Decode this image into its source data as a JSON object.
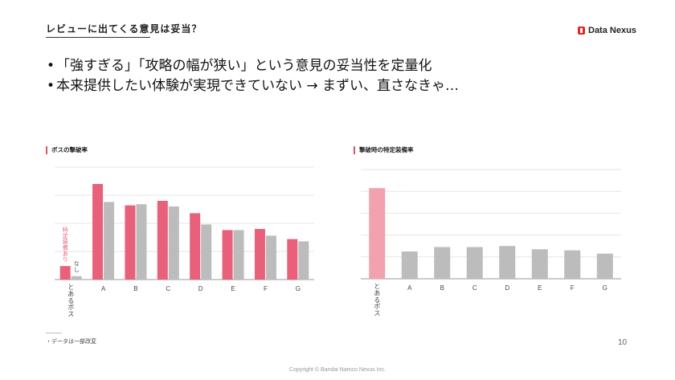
{
  "header": {
    "title": "レビューに出てくる意見は妥当？"
  },
  "logo": {
    "text": "Data Nexus"
  },
  "bullets": [
    "「強すぎる」「攻略の幅が狭い」という意見の妥当性を定量化",
    "本来提供したい体験が実現できていない → まずい、直さなきゃ…"
  ],
  "bullet_marker": "•",
  "chart_data": [
    {
      "type": "bar",
      "title": "ボスの撃破率",
      "categories": [
        "とあるボス",
        "A",
        "B",
        "C",
        "D",
        "E",
        "F",
        "G"
      ],
      "series": [
        {
          "name": "特定装備あり",
          "values": [
            12,
            85,
            66,
            70,
            59,
            44,
            45,
            36
          ],
          "color": "#e8607a"
        },
        {
          "name": "なし",
          "values": [
            3,
            69,
            67,
            65,
            49,
            44,
            39,
            34
          ],
          "color": "#bcbcbc"
        }
      ],
      "ylim": [
        0,
        100
      ],
      "grid": true
    },
    {
      "type": "bar",
      "title": "撃破時の特定装備率",
      "categories": [
        "とあるボス",
        "A",
        "B",
        "C",
        "D",
        "E",
        "F",
        "G"
      ],
      "series": [
        {
          "values": [
            83,
            25,
            29,
            29,
            30,
            27,
            26,
            23
          ],
          "colors": [
            "#f1a2ae",
            "#bcbcbc",
            "#bcbcbc",
            "#bcbcbc",
            "#bcbcbc",
            "#bcbcbc",
            "#bcbcbc",
            "#bcbcbc"
          ]
        }
      ],
      "ylim": [
        0,
        100
      ],
      "grid": true
    }
  ],
  "footnote": "・データは一部改変",
  "page_number": "10",
  "copyright": "Copyright © Bandai Namco Nexus Inc."
}
